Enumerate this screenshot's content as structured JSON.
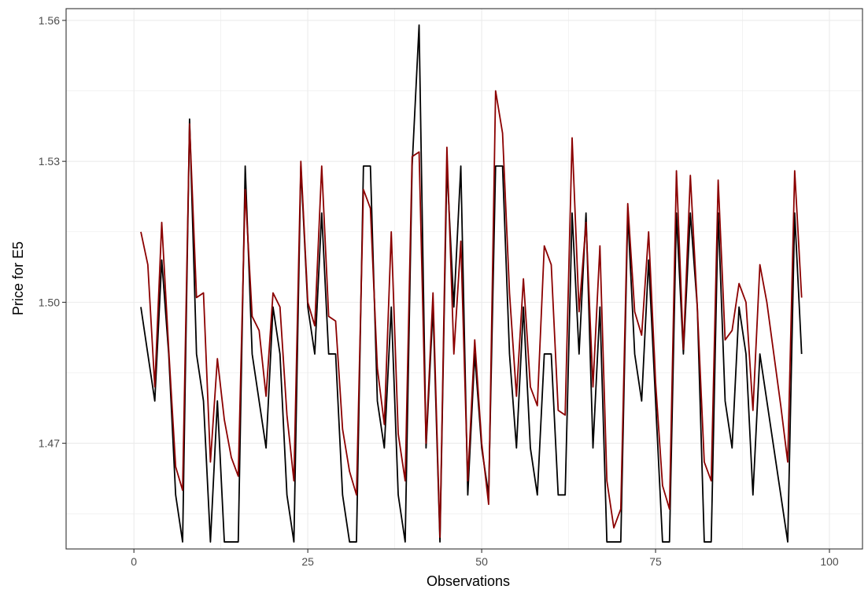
{
  "chart_data": {
    "type": "line",
    "title": "",
    "xlabel": "Observations",
    "ylabel": "Price for E5",
    "xlim": [
      -9.75,
      104.75
    ],
    "ylim": [
      1.4475,
      1.5625
    ],
    "x_ticks": [
      0,
      25,
      50,
      75,
      100
    ],
    "x_tick_labels": [
      "0",
      "25",
      "50",
      "75",
      "100"
    ],
    "y_ticks": [
      1.47,
      1.5,
      1.53,
      1.56
    ],
    "y_tick_labels": [
      "1.47",
      "1.50",
      "1.53",
      "1.56"
    ],
    "y_minor_ticks": [
      1.455,
      1.485,
      1.515,
      1.545
    ],
    "x_minor_ticks": [
      12.5,
      37.5,
      62.5,
      87.5
    ],
    "grid": true,
    "legend": "none",
    "colors": {
      "series_1": "#000000",
      "series_2": "#8B0000",
      "grid": "#EBEBEB",
      "panel_border": "#333333",
      "tick_label": "#4D4D4D"
    },
    "x": [
      1,
      2,
      3,
      4,
      5,
      6,
      7,
      8,
      9,
      10,
      11,
      12,
      13,
      14,
      15,
      16,
      17,
      18,
      19,
      20,
      21,
      22,
      23,
      24,
      25,
      26,
      27,
      28,
      29,
      30,
      31,
      32,
      33,
      34,
      35,
      36,
      37,
      38,
      39,
      40,
      41,
      42,
      43,
      44,
      45,
      46,
      47,
      48,
      49,
      50,
      51,
      52,
      53,
      54,
      55,
      56,
      57,
      58,
      59,
      60,
      61,
      62,
      63,
      64,
      65,
      66,
      67,
      68,
      69,
      70,
      71,
      72,
      73,
      74,
      75,
      76,
      77,
      78,
      79,
      80,
      81,
      82,
      83,
      84,
      85,
      86,
      87,
      88,
      89,
      90,
      91,
      92,
      93,
      94,
      95,
      96
    ],
    "series": [
      {
        "values": [
          1.499,
          1.489,
          1.479,
          1.509,
          1.489,
          1.459,
          1.449,
          1.539,
          1.489,
          1.479,
          1.449,
          1.479,
          1.449,
          1.449,
          1.449,
          1.529,
          1.489,
          1.479,
          1.469,
          1.499,
          1.489,
          1.459,
          1.449,
          1.529,
          1.499,
          1.489,
          1.519,
          1.489,
          1.489,
          1.459,
          1.449,
          1.449,
          1.529,
          1.529,
          1.479,
          1.469,
          1.499,
          1.459,
          1.449,
          1.529,
          1.559,
          1.469,
          1.499,
          1.449,
          1.529,
          1.499,
          1.529,
          1.459,
          1.489,
          1.469,
          1.459,
          1.529,
          1.529,
          1.489,
          1.469,
          1.499,
          1.469,
          1.459,
          1.489,
          1.489,
          1.459,
          1.459,
          1.519,
          1.489,
          1.519,
          1.469,
          1.499,
          1.449,
          1.449,
          1.449,
          1.519,
          1.489,
          1.479,
          1.509,
          1.479,
          1.449,
          1.449,
          1.519,
          1.489,
          1.519,
          1.499,
          1.449,
          1.449,
          1.519,
          1.479,
          1.469,
          1.499,
          1.489,
          1.459,
          1.489,
          1.479,
          1.469,
          1.459,
          1.449,
          1.519,
          1.489
        ]
      },
      {
        "values": [
          1.515,
          1.508,
          1.482,
          1.517,
          1.49,
          1.465,
          1.46,
          1.538,
          1.501,
          1.502,
          1.466,
          1.488,
          1.475,
          1.467,
          1.463,
          1.524,
          1.497,
          1.494,
          1.48,
          1.502,
          1.499,
          1.476,
          1.462,
          1.53,
          1.5,
          1.495,
          1.529,
          1.497,
          1.496,
          1.473,
          1.464,
          1.459,
          1.524,
          1.52,
          1.486,
          1.474,
          1.515,
          1.472,
          1.462,
          1.531,
          1.532,
          1.47,
          1.502,
          1.45,
          1.533,
          1.489,
          1.513,
          1.462,
          1.492,
          1.47,
          1.457,
          1.545,
          1.536,
          1.502,
          1.48,
          1.505,
          1.482,
          1.478,
          1.512,
          1.508,
          1.477,
          1.476,
          1.535,
          1.498,
          1.517,
          1.482,
          1.512,
          1.462,
          1.452,
          1.456,
          1.521,
          1.498,
          1.493,
          1.515,
          1.483,
          1.461,
          1.456,
          1.528,
          1.49,
          1.527,
          1.499,
          1.466,
          1.462,
          1.526,
          1.492,
          1.494,
          1.504,
          1.5,
          1.477,
          1.508,
          1.5,
          1.489,
          1.478,
          1.466,
          1.528,
          1.501
        ]
      }
    ]
  }
}
